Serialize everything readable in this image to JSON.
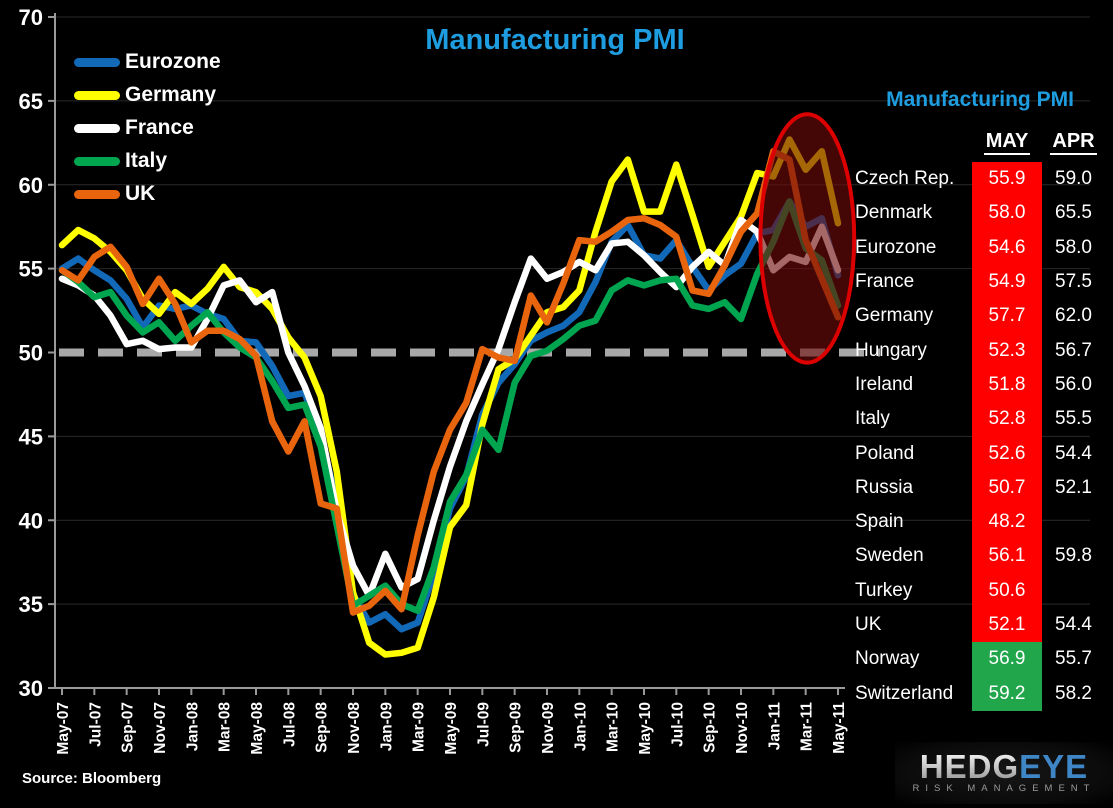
{
  "title": "Manufacturing PMI",
  "source_label": "Source: Bloomberg",
  "logo": {
    "word_left": "HEDG",
    "word_right": "EYE",
    "subtitle": "RISK MANAGEMENT"
  },
  "colors": {
    "accent_blue": "#1E9EE0",
    "red_cell": "#FF0000",
    "green_cell": "#21A64B",
    "reference_gray": "#A8A8A8",
    "grid_gray": "#2A2A2A",
    "axis_gray": "#9A9A9A",
    "ellipse_stroke": "#DD0000",
    "ellipse_fill": "rgba(112,10,10,0.62)"
  },
  "chart_data": {
    "type": "line",
    "title": "Manufacturing PMI",
    "xlabel": "",
    "ylabel": "",
    "ylim": [
      30,
      70
    ],
    "ytick_step": 5,
    "yticks": [
      30,
      35,
      40,
      45,
      50,
      55,
      60,
      65,
      70
    ],
    "grid": "horizontal-faint",
    "legend_position": "top-left-inside",
    "x_labels_shown": [
      "May-07",
      "Jul-07",
      "Sep-07",
      "Nov-07",
      "Jan-08",
      "Mar-08",
      "May-08",
      "Jul-08",
      "Sep-08",
      "Nov-08",
      "Jan-09",
      "Mar-09",
      "May-09",
      "Jul-09",
      "Sep-09",
      "Nov-09",
      "Jan-10",
      "Mar-10",
      "May-10",
      "Jul-10",
      "Sep-10",
      "Nov-10",
      "Jan-11",
      "Mar-11",
      "May-11"
    ],
    "points_per_label": 2,
    "reference_line": {
      "value": 50,
      "style": "dashed"
    },
    "annotation_ellipse": {
      "center_month_index": 46.1,
      "center_value": 56.8,
      "rx_months": 2.9,
      "ry_values": 7.4
    },
    "series": [
      {
        "name": "Eurozone",
        "color": "#1269B8",
        "values": [
          55.0,
          55.6,
          54.9,
          54.3,
          53.2,
          51.5,
          52.8,
          52.6,
          52.8,
          52.3,
          52.0,
          50.7,
          50.6,
          49.2,
          47.4,
          47.6,
          45.0,
          41.1,
          35.6,
          33.9,
          34.4,
          33.5,
          33.9,
          36.8,
          40.7,
          42.6,
          46.3,
          48.2,
          49.3,
          50.7,
          51.2,
          51.6,
          52.4,
          54.2,
          56.6,
          57.6,
          55.8,
          55.6,
          56.7,
          55.1,
          53.7,
          54.6,
          55.3,
          57.1,
          57.3,
          59.0,
          57.5,
          58.0,
          54.6
        ]
      },
      {
        "name": "Germany",
        "color": "#FFFF00",
        "values": [
          56.4,
          57.3,
          56.8,
          56.0,
          54.9,
          53.2,
          52.3,
          53.6,
          52.9,
          53.8,
          55.1,
          53.9,
          53.6,
          52.6,
          50.9,
          49.7,
          47.4,
          42.9,
          35.7,
          32.7,
          32.0,
          32.1,
          32.4,
          35.4,
          39.6,
          40.9,
          45.7,
          49.0,
          49.6,
          51.0,
          52.4,
          52.7,
          53.7,
          57.2,
          60.2,
          61.5,
          58.4,
          58.4,
          61.2,
          58.2,
          55.1,
          56.6,
          58.1,
          60.7,
          60.5,
          62.7,
          60.9,
          62.0,
          57.7
        ]
      },
      {
        "name": "France",
        "color": "#FFFFFF",
        "values": [
          54.4,
          54.0,
          53.4,
          52.2,
          50.5,
          50.7,
          50.2,
          50.3,
          50.3,
          52.0,
          54.0,
          54.3,
          53.0,
          53.6,
          50.0,
          48.0,
          45.5,
          40.5,
          37.3,
          35.5,
          38.0,
          36.0,
          36.5,
          40.0,
          43.2,
          45.9,
          48.1,
          50.2,
          53.0,
          55.6,
          54.4,
          54.8,
          55.4,
          54.9,
          56.5,
          56.6,
          55.8,
          54.8,
          53.9,
          55.1,
          56.0,
          55.2,
          57.9,
          57.2,
          54.9,
          55.7,
          55.4,
          57.5,
          54.9
        ]
      },
      {
        "name": "Italy",
        "color": "#00A550",
        "values": [
          54.9,
          54.2,
          53.3,
          53.6,
          52.2,
          51.2,
          51.8,
          50.7,
          51.6,
          52.4,
          51.2,
          50.3,
          49.7,
          48.3,
          46.7,
          46.9,
          44.4,
          39.7,
          34.9,
          35.5,
          36.1,
          35.0,
          34.6,
          37.2,
          41.1,
          42.7,
          45.4,
          44.2,
          48.2,
          49.8,
          50.1,
          50.8,
          51.6,
          51.9,
          53.7,
          54.3,
          54.0,
          54.3,
          54.4,
          52.8,
          52.6,
          53.0,
          52.0,
          54.7,
          56.6,
          59.0,
          56.2,
          55.5,
          52.8
        ]
      },
      {
        "name": "UK",
        "color": "#E8650D",
        "values": [
          54.9,
          54.3,
          55.7,
          56.3,
          55.1,
          52.9,
          54.4,
          52.9,
          50.6,
          51.3,
          51.3,
          50.8,
          49.8,
          45.9,
          44.1,
          45.9,
          41.0,
          40.7,
          34.5,
          34.9,
          35.8,
          34.7,
          39.1,
          42.9,
          45.4,
          47.0,
          50.2,
          49.7,
          49.5,
          53.4,
          51.8,
          54.1,
          56.7,
          56.6,
          57.2,
          57.9,
          58.0,
          57.6,
          56.9,
          53.7,
          53.5,
          55.2,
          57.2,
          58.3,
          62.0,
          61.5,
          56.7,
          54.4,
          52.1
        ]
      }
    ]
  },
  "table": {
    "title": "Manufacturing PMI",
    "columns": [
      "MAY",
      "APR"
    ],
    "rows": [
      {
        "country": "Czech Rep.",
        "may": "55.9",
        "apr": "59.0",
        "status": "down"
      },
      {
        "country": "Denmark",
        "may": "58.0",
        "apr": "65.5",
        "status": "down"
      },
      {
        "country": "Eurozone",
        "may": "54.6",
        "apr": "58.0",
        "status": "down"
      },
      {
        "country": "France",
        "may": "54.9",
        "apr": "57.5",
        "status": "down"
      },
      {
        "country": "Germany",
        "may": "57.7",
        "apr": "62.0",
        "status": "down"
      },
      {
        "country": "Hungary",
        "may": "52.3",
        "apr": "56.7",
        "status": "down"
      },
      {
        "country": "Ireland",
        "may": "51.8",
        "apr": "56.0",
        "status": "down"
      },
      {
        "country": "Italy",
        "may": "52.8",
        "apr": "55.5",
        "status": "down"
      },
      {
        "country": "Poland",
        "may": "52.6",
        "apr": "54.4",
        "status": "down"
      },
      {
        "country": "Russia",
        "may": "50.7",
        "apr": "52.1",
        "status": "down"
      },
      {
        "country": "Spain",
        "may": "48.2",
        "apr": "",
        "status": "down"
      },
      {
        "country": "Sweden",
        "may": "56.1",
        "apr": "59.8",
        "status": "down"
      },
      {
        "country": "Turkey",
        "may": "50.6",
        "apr": "",
        "status": "down"
      },
      {
        "country": "UK",
        "may": "52.1",
        "apr": "54.4",
        "status": "down"
      },
      {
        "country": "Norway",
        "may": "56.9",
        "apr": "55.7",
        "status": "up"
      },
      {
        "country": "Switzerland",
        "may": "59.2",
        "apr": "58.2",
        "status": "up"
      }
    ]
  }
}
